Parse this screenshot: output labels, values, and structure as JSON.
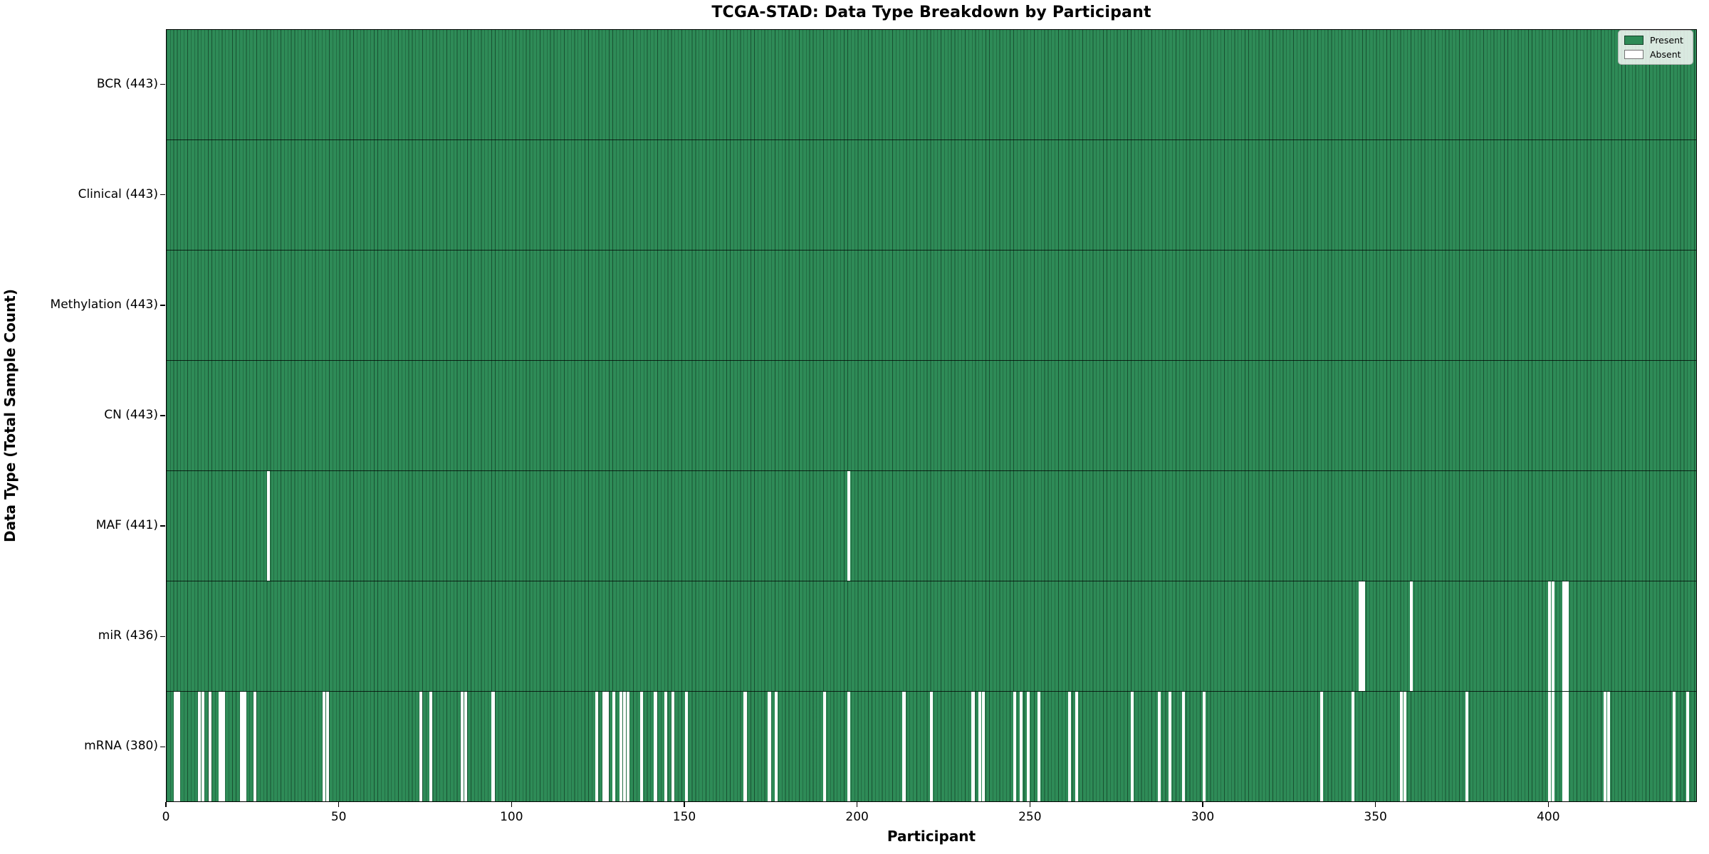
{
  "title": "TCGA-STAD: Data Type Breakdown by Participant",
  "x_axis": {
    "label": "Participant",
    "ticks": [
      0,
      50,
      100,
      150,
      200,
      250,
      300,
      350,
      400
    ]
  },
  "y_axis": {
    "label": "Data Type (Total Sample Count)"
  },
  "legend": {
    "present_label": "Present",
    "absent_label": "Absent"
  },
  "colors": {
    "present": "#2e8b57",
    "absent": "#ffffff",
    "cell_edge": "rgba(5,25,14,0.52)",
    "spine": "#000000",
    "text": "#000000"
  },
  "chart_data": {
    "type": "heatmap",
    "title": "TCGA-STAD: Data Type Breakdown by Participant",
    "xlabel": "Participant",
    "ylabel": "Data Type (Total Sample Count)",
    "xlim": [
      0,
      443
    ],
    "n_participants": 443,
    "legend_entries": [
      "Present",
      "Absent"
    ],
    "legend_position": "upper right",
    "grid": false,
    "rows": [
      {
        "name": "BCR",
        "label": "BCR (443)",
        "present_count": 443,
        "absent_participants": []
      },
      {
        "name": "Clinical",
        "label": "Clinical (443)",
        "present_count": 443,
        "absent_participants": []
      },
      {
        "name": "Methylation",
        "label": "Methylation (443)",
        "present_count": 443,
        "absent_participants": []
      },
      {
        "name": "CN",
        "label": "CN (443)",
        "present_count": 443,
        "absent_participants": []
      },
      {
        "name": "MAF",
        "label": "MAF (441)",
        "present_count": 441,
        "absent_participants": [
          29,
          197
        ]
      },
      {
        "name": "miR",
        "label": "miR (436)",
        "present_count": 436,
        "absent_participants": [
          345,
          346,
          360,
          400,
          401,
          404,
          405
        ]
      },
      {
        "name": "mRNA",
        "label": "mRNA (380)",
        "present_count": 380,
        "absent_participants": [
          2,
          3,
          9,
          10,
          12,
          15,
          16,
          21,
          22,
          25,
          45,
          46,
          73,
          76,
          85,
          86,
          94,
          124,
          126,
          127,
          129,
          131,
          132,
          133,
          137,
          141,
          144,
          146,
          150,
          167,
          174,
          176,
          190,
          197,
          213,
          221,
          233,
          235,
          236,
          245,
          247,
          249,
          252,
          261,
          263,
          279,
          287,
          290,
          294,
          300,
          334,
          343,
          357,
          358,
          376,
          400,
          401,
          404,
          405,
          416,
          417,
          436,
          440
        ]
      }
    ]
  }
}
